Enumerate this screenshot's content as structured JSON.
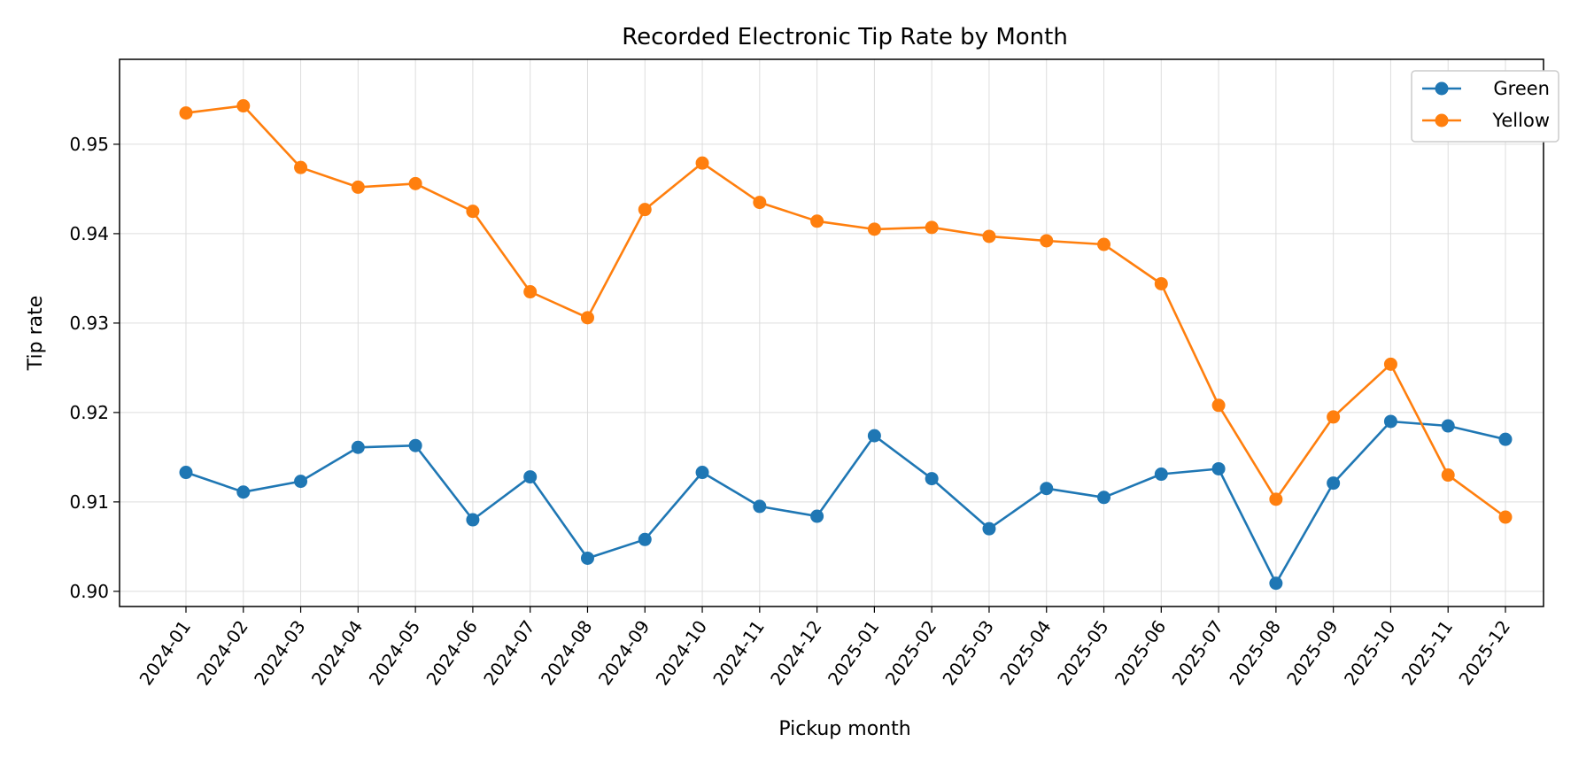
{
  "chart_data": {
    "type": "line",
    "title": "Recorded Electronic Tip Rate by Month",
    "xlabel": "Pickup month",
    "ylabel": "Tip rate",
    "x": [
      "2024-01",
      "2024-02",
      "2024-03",
      "2024-04",
      "2024-05",
      "2024-06",
      "2024-07",
      "2024-08",
      "2024-09",
      "2024-10",
      "2024-11",
      "2024-12",
      "2025-01",
      "2025-02",
      "2025-03",
      "2025-04",
      "2025-05",
      "2025-06",
      "2025-07",
      "2025-08",
      "2025-09",
      "2025-10",
      "2025-11",
      "2025-12"
    ],
    "ylim": [
      0.8983,
      0.9595
    ],
    "yticks": [
      "0.90",
      "0.91",
      "0.92",
      "0.93",
      "0.94",
      "0.95"
    ],
    "grid": true,
    "legend_position": "top-right",
    "series": [
      {
        "name": "Green",
        "color": "#1f77b4",
        "values": [
          0.9133,
          0.9111,
          0.9123,
          0.9161,
          0.9163,
          0.908,
          0.9128,
          0.9037,
          0.9058,
          0.9133,
          0.9095,
          0.9084,
          0.9174,
          0.9126,
          0.907,
          0.9115,
          0.9105,
          0.9131,
          0.9137,
          0.9009,
          0.9121,
          0.919,
          0.9185,
          0.917
        ]
      },
      {
        "name": "Yellow",
        "color": "#ff7f0e",
        "values": [
          0.9535,
          0.9543,
          0.9474,
          0.9452,
          0.9456,
          0.9425,
          0.9335,
          0.9306,
          0.9427,
          0.9479,
          0.9435,
          0.9414,
          0.9405,
          0.9407,
          0.9397,
          0.9392,
          0.9388,
          0.9344,
          0.9208,
          0.9103,
          0.9195,
          0.9254,
          0.913,
          0.9083
        ]
      }
    ]
  }
}
